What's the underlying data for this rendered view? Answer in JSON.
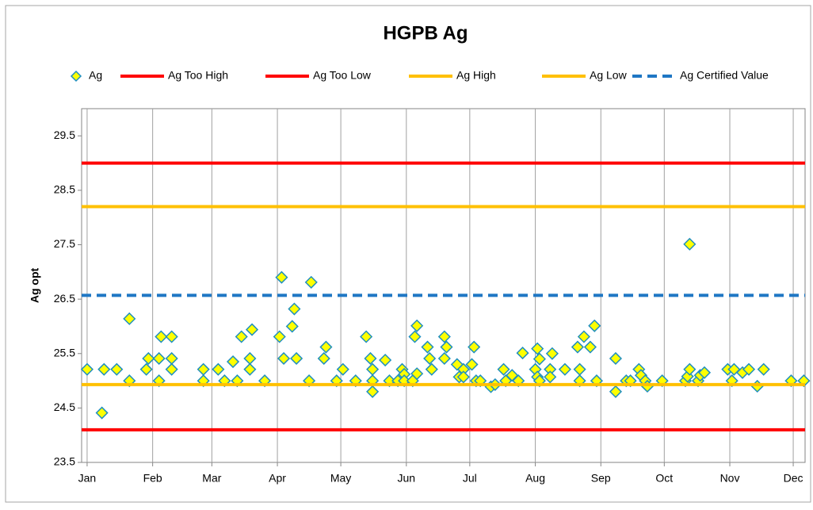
{
  "chart_data": {
    "type": "scatter",
    "title": "HGPB Ag",
    "y_label": "Ag opt",
    "xlim": [
      -2.6,
      339.6
    ],
    "ylim": [
      23.5,
      30
    ],
    "xticks": [
      {
        "value": 0,
        "label": "Jan"
      },
      {
        "value": 31,
        "label": "Feb"
      },
      {
        "value": 59,
        "label": "Mar"
      },
      {
        "value": 90,
        "label": "Apr"
      },
      {
        "value": 120,
        "label": "May"
      },
      {
        "value": 151,
        "label": "Jun"
      },
      {
        "value": 181,
        "label": "Jul"
      },
      {
        "value": 212,
        "label": "Aug"
      },
      {
        "value": 243,
        "label": "Sep"
      },
      {
        "value": 273,
        "label": "Oct"
      },
      {
        "value": 304,
        "label": "Nov"
      },
      {
        "value": 334,
        "label": "Dec"
      }
    ],
    "yticks": [
      23.5,
      24.5,
      25.5,
      26.5,
      27.5,
      28.5,
      29.5
    ],
    "grid": "x",
    "series": [
      {
        "name": "Ag",
        "color": "#ffff00",
        "edge": "#1f8fbf",
        "x": [
          0,
          7,
          8,
          14,
          20,
          20,
          28,
          29,
          34,
          34,
          35,
          40,
          40,
          40,
          55,
          55,
          62,
          65,
          69,
          71,
          73,
          77,
          77,
          78,
          84,
          91,
          92,
          93,
          97,
          98,
          99,
          105,
          106,
          112,
          113,
          118,
          121,
          127,
          132,
          134,
          135,
          135,
          135,
          141,
          143,
          147,
          149,
          150,
          150,
          154,
          155,
          156,
          156,
          161,
          162,
          163,
          169,
          169,
          170,
          175,
          176,
          178,
          178,
          182,
          183,
          184,
          186,
          191,
          193,
          197,
          198,
          201,
          204,
          206,
          212,
          213,
          213,
          214,
          214,
          219,
          219,
          220,
          226,
          232,
          233,
          233,
          235,
          238,
          240,
          241,
          250,
          250,
          255,
          257,
          261,
          262,
          264,
          265,
          272,
          283,
          284,
          285,
          285,
          289,
          290,
          292,
          303,
          305,
          306,
          310,
          313,
          317,
          320,
          333,
          339
        ],
        "values": [
          25.21,
          24.41,
          25.21,
          25.21,
          26.14,
          25.0,
          25.21,
          25.41,
          25.0,
          25.41,
          25.81,
          25.41,
          25.81,
          25.21,
          25.21,
          25.0,
          25.21,
          25.0,
          25.35,
          25.0,
          25.81,
          25.41,
          25.21,
          25.94,
          25.0,
          25.81,
          26.9,
          25.41,
          26.0,
          26.32,
          25.41,
          25.0,
          26.81,
          25.41,
          25.62,
          25.0,
          25.21,
          25.0,
          25.81,
          25.41,
          24.8,
          25.21,
          25.0,
          25.38,
          25.0,
          25.0,
          25.21,
          25.12,
          25.0,
          25.0,
          25.81,
          26.01,
          25.13,
          25.62,
          25.41,
          25.21,
          25.41,
          25.81,
          25.62,
          25.3,
          25.07,
          25.21,
          25.07,
          25.3,
          25.62,
          25.0,
          25.0,
          24.89,
          24.93,
          25.21,
          25.0,
          25.1,
          25.0,
          25.51,
          25.21,
          25.59,
          25.07,
          25.0,
          25.4,
          25.21,
          25.07,
          25.5,
          25.21,
          25.62,
          25.0,
          25.21,
          25.81,
          25.62,
          26.01,
          25.0,
          24.8,
          25.41,
          25.0,
          25.0,
          25.21,
          25.1,
          25.0,
          24.9,
          25.0,
          25.0,
          25.08,
          25.21,
          27.51,
          25.0,
          25.1,
          25.15,
          25.21,
          25.0,
          25.21,
          25.15,
          25.21,
          24.9,
          25.21,
          25.0,
          25.0
        ]
      },
      {
        "name": "Ag Too High",
        "color": "#ff0000",
        "y": 29.0
      },
      {
        "name": "Ag Too Low",
        "color": "#ff0000",
        "y": 24.1
      },
      {
        "name": "Ag High",
        "color": "#ffc000",
        "y": 28.2
      },
      {
        "name": "Ag Low",
        "color": "#ffc000",
        "y": 24.93
      },
      {
        "name": "Ag Certified Value",
        "color": "#1f77c4",
        "y": 26.57,
        "dash": true
      }
    ]
  }
}
